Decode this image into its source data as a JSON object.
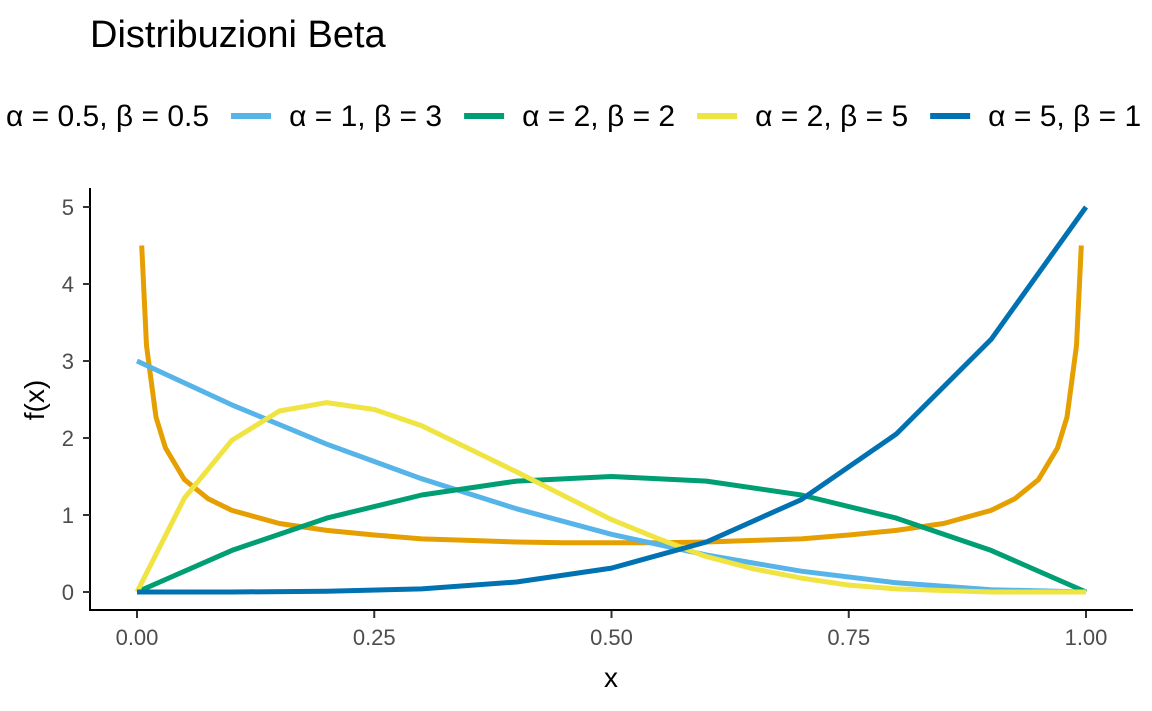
{
  "chart_data": {
    "type": "line",
    "title": "Distribuzioni Beta",
    "xlabel": "x",
    "ylabel": "f(x)",
    "xlim": [
      0,
      1
    ],
    "ylim": [
      0,
      5
    ],
    "x_ticks": [
      "0.00",
      "0.25",
      "0.50",
      "0.75",
      "1.00"
    ],
    "y_ticks": [
      "0",
      "1",
      "2",
      "3",
      "4",
      "5"
    ],
    "grid": false,
    "legend_position": "top",
    "series": [
      {
        "name": "α = 0.5, β = 0.5",
        "color": "#E69F00",
        "x": [
          0.005,
          0.01,
          0.02,
          0.03,
          0.05,
          0.075,
          0.1,
          0.15,
          0.2,
          0.25,
          0.3,
          0.35,
          0.4,
          0.45,
          0.5,
          0.55,
          0.6,
          0.65,
          0.7,
          0.75,
          0.8,
          0.85,
          0.9,
          0.925,
          0.95,
          0.97,
          0.98,
          0.99,
          0.995
        ],
        "y": [
          4.5,
          3.2,
          2.27,
          1.87,
          1.46,
          1.21,
          1.06,
          0.89,
          0.8,
          0.74,
          0.69,
          0.67,
          0.65,
          0.64,
          0.64,
          0.64,
          0.65,
          0.67,
          0.69,
          0.74,
          0.8,
          0.89,
          1.06,
          1.21,
          1.46,
          1.87,
          2.27,
          3.2,
          4.5
        ]
      },
      {
        "name": "α = 1, β = 3",
        "color": "#56B4E9",
        "x": [
          0,
          0.1,
          0.2,
          0.3,
          0.4,
          0.5,
          0.6,
          0.7,
          0.8,
          0.9,
          1.0
        ],
        "y": [
          3.0,
          2.43,
          1.92,
          1.47,
          1.08,
          0.75,
          0.48,
          0.27,
          0.12,
          0.03,
          0.0
        ]
      },
      {
        "name": "α = 2, β = 2",
        "color": "#009E73",
        "x": [
          0,
          0.1,
          0.2,
          0.3,
          0.4,
          0.5,
          0.6,
          0.7,
          0.8,
          0.9,
          1.0
        ],
        "y": [
          0.0,
          0.54,
          0.96,
          1.26,
          1.44,
          1.5,
          1.44,
          1.26,
          0.96,
          0.54,
          0.0
        ]
      },
      {
        "name": "α = 2, β = 5",
        "color": "#F0E442",
        "x": [
          0,
          0.05,
          0.1,
          0.15,
          0.2,
          0.25,
          0.3,
          0.35,
          0.4,
          0.45,
          0.5,
          0.55,
          0.6,
          0.65,
          0.7,
          0.75,
          0.8,
          0.85,
          0.9,
          0.95,
          1.0
        ],
        "y": [
          0.0,
          1.22,
          1.97,
          2.35,
          2.46,
          2.37,
          2.16,
          1.86,
          1.56,
          1.25,
          0.94,
          0.69,
          0.46,
          0.3,
          0.18,
          0.09,
          0.04,
          0.02,
          0.0,
          0.0,
          0.0
        ]
      },
      {
        "name": "α = 5, β = 1",
        "color": "#0072B2",
        "x": [
          0,
          0.1,
          0.2,
          0.3,
          0.4,
          0.5,
          0.6,
          0.7,
          0.8,
          0.9,
          1.0
        ],
        "y": [
          0.0,
          0.0,
          0.01,
          0.04,
          0.13,
          0.31,
          0.65,
          1.2,
          2.05,
          3.28,
          5.0
        ]
      }
    ]
  }
}
